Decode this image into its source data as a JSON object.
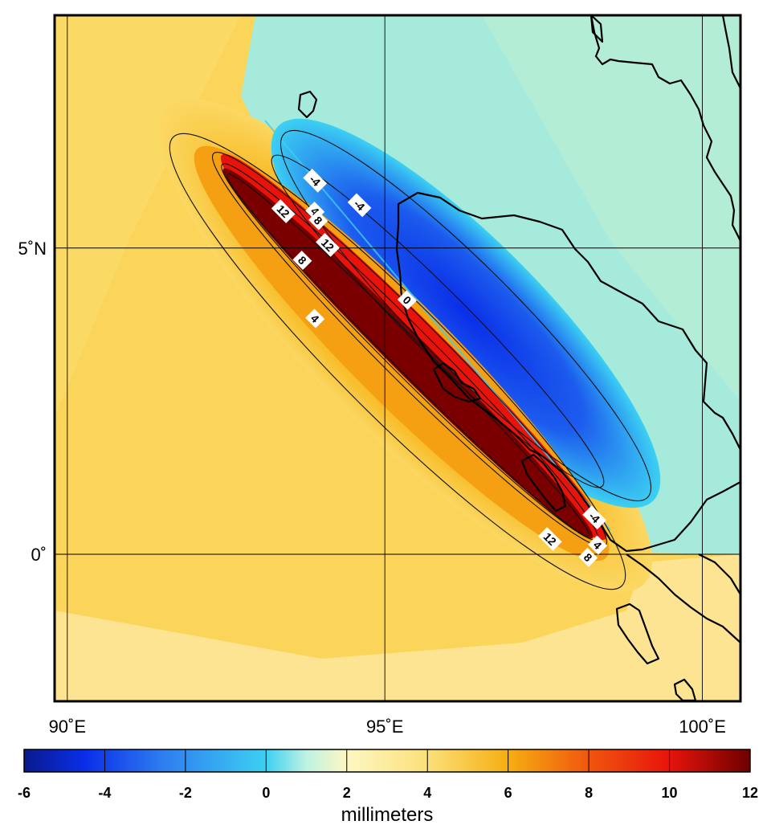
{
  "map": {
    "lon_range": [
      89.8,
      100.6
    ],
    "lat_range": [
      -2.4,
      8.8
    ],
    "grid": {
      "lon_lines": [
        90,
        95,
        100
      ],
      "lat_lines": [
        0,
        5
      ]
    },
    "lon_tick_labels": [
      {
        "lon": 90,
        "label": "90˚E"
      },
      {
        "lon": 95,
        "label": "95˚E"
      },
      {
        "lon": 100,
        "label": "100˚E"
      }
    ],
    "lat_tick_labels": [
      {
        "lat": 5,
        "label": "5˚N"
      },
      {
        "lat": 0,
        "label": "0˚"
      }
    ],
    "contour_labels": [
      {
        "text": "-4",
        "lon": 93.9,
        "lat": 6.1
      },
      {
        "text": "-4",
        "lon": 94.6,
        "lat": 5.7
      },
      {
        "text": "4",
        "lon": 93.9,
        "lat": 5.6
      },
      {
        "text": "8",
        "lon": 93.95,
        "lat": 5.45
      },
      {
        "text": "12",
        "lon": 93.4,
        "lat": 5.6
      },
      {
        "text": "12",
        "lon": 94.1,
        "lat": 5.05
      },
      {
        "text": "8",
        "lon": 93.7,
        "lat": 4.8
      },
      {
        "text": "0",
        "lon": 95.35,
        "lat": 4.15
      },
      {
        "text": "4",
        "lon": 93.9,
        "lat": 3.85
      },
      {
        "text": "-4",
        "lon": 98.3,
        "lat": 0.6
      },
      {
        "text": "12",
        "lon": 97.6,
        "lat": 0.25
      },
      {
        "text": "4",
        "lon": 98.35,
        "lat": 0.15
      },
      {
        "text": "8",
        "lon": 98.2,
        "lat": -0.05
      }
    ]
  },
  "colorbar": {
    "ticks": [
      "-6",
      "-4",
      "-2",
      "0",
      "2",
      "4",
      "6",
      "8",
      "10",
      "12"
    ],
    "label": "millimeters",
    "stops": [
      {
        "value": -6,
        "color": "#0a1a8c"
      },
      {
        "value": -4.5,
        "color": "#0a2ee8"
      },
      {
        "value": -2.5,
        "color": "#2f7ff0"
      },
      {
        "value": 0,
        "color": "#3cd0f2"
      },
      {
        "value": 1,
        "color": "#bff2e2"
      },
      {
        "value": 2,
        "color": "#fdf7c2"
      },
      {
        "value": 4,
        "color": "#fbe07a"
      },
      {
        "value": 6,
        "color": "#f6ae12"
      },
      {
        "value": 8,
        "color": "#f0560e"
      },
      {
        "value": 10,
        "color": "#e8140c"
      },
      {
        "value": 12,
        "color": "#6e0000"
      }
    ]
  }
}
